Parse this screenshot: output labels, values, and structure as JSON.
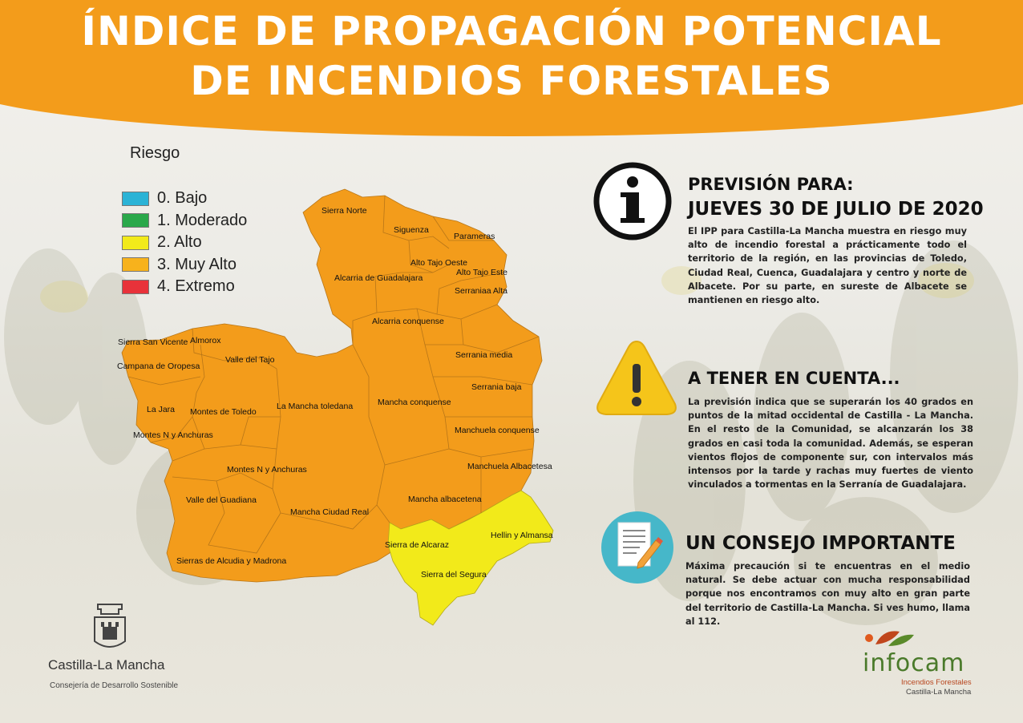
{
  "title": {
    "line1": "ÍNDICE DE PROPAGACIÓN POTENCIAL",
    "line2": "DE INCENDIOS FORESTALES"
  },
  "colors": {
    "banner": "#f39c1b",
    "muy_alto": "#f39c1b",
    "alto": "#f2ea1a"
  },
  "legend": {
    "title": "Riesgo",
    "items": [
      {
        "label": "0. Bajo",
        "color": "#2bb3d6"
      },
      {
        "label": "1. Moderado",
        "color": "#2aa84a"
      },
      {
        "label": "2. Alto",
        "color": "#f2ea1a"
      },
      {
        "label": "3. Muy Alto",
        "color": "#f7b21c"
      },
      {
        "label": "4. Extremo",
        "color": "#e8323a"
      }
    ]
  },
  "map": {
    "zones": [
      {
        "name": "Sierra Norte",
        "risk": "3. Muy Alto"
      },
      {
        "name": "Siguenza",
        "risk": "3. Muy Alto"
      },
      {
        "name": "Parameras",
        "risk": "3. Muy Alto"
      },
      {
        "name": "Alto Tajo Oeste",
        "risk": "3. Muy Alto"
      },
      {
        "name": "Alto Tajo Este",
        "risk": "3. Muy Alto"
      },
      {
        "name": "Alcarria de Guadalajara",
        "risk": "3. Muy Alto"
      },
      {
        "name": "Serraniaa Alta",
        "risk": "3. Muy Alto"
      },
      {
        "name": "Alcarria conquense",
        "risk": "3. Muy Alto"
      },
      {
        "name": "Sierra San Vicente",
        "risk": "3. Muy Alto"
      },
      {
        "name": "Almorox",
        "risk": "3. Muy Alto"
      },
      {
        "name": "Valle del Tajo",
        "risk": "3. Muy Alto"
      },
      {
        "name": "Serrania media",
        "risk": "3. Muy Alto"
      },
      {
        "name": "Campana de Oropesa",
        "risk": "3. Muy Alto"
      },
      {
        "name": "Serrania baja",
        "risk": "3. Muy Alto"
      },
      {
        "name": "Mancha conquense",
        "risk": "3. Muy Alto"
      },
      {
        "name": "La Mancha toledana",
        "risk": "3. Muy Alto"
      },
      {
        "name": "La Jara",
        "risk": "3. Muy Alto"
      },
      {
        "name": "Montes de Toledo",
        "risk": "3. Muy Alto"
      },
      {
        "name": "Manchuela conquense",
        "risk": "3. Muy Alto"
      },
      {
        "name": "Montes N y Anchuras",
        "risk": "3. Muy Alto"
      },
      {
        "name": "Manchuela Albacetesa",
        "risk": "3. Muy Alto"
      },
      {
        "name": "Montes N y Anchuras",
        "risk": "3. Muy Alto"
      },
      {
        "name": "Valle del Guadiana",
        "risk": "3. Muy Alto"
      },
      {
        "name": "Mancha albacetena",
        "risk": "3. Muy Alto"
      },
      {
        "name": "Mancha Ciudad Real",
        "risk": "3. Muy Alto"
      },
      {
        "name": "Hellin y Almansa",
        "risk": "2. Alto"
      },
      {
        "name": "Sierra de Alcaraz",
        "risk": "2. Alto"
      },
      {
        "name": "Sierras de Alcudia y Madrona",
        "risk": "3. Muy Alto"
      },
      {
        "name": "Sierra del Segura",
        "risk": "2. Alto"
      }
    ]
  },
  "prevision": {
    "heading1": "PREVISIÓN PARA:",
    "heading2": "JUEVES 30 DE JULIO DE 2020",
    "body": "El IPP para Castilla-La Mancha muestra en riesgo muy alto de incendio forestal a prácticamente todo el territorio de la región, en las provincias de Toledo, Ciudad Real, Cuenca, Guadalajara y centro y norte de Albacete. Por su parte, en sureste de Albacete se mantienen en riesgo alto.",
    "icon": "info-icon"
  },
  "tener_en_cuenta": {
    "heading": "A TENER EN CUENTA...",
    "body": "La previsión indica que se superarán los 40 grados en puntos de la mitad occidental de Castilla - La Mancha. En el resto de la Comunidad, se alcanzarán los 38 grados en casi toda la comunidad. Además, se esperan vientos flojos de componente sur, con intervalos más intensos por la tarde y rachas muy fuertes de viento vinculados a tormentas en la Serranía de Guadalajara.",
    "icon": "warning-icon"
  },
  "consejo": {
    "heading": "UN CONSEJO IMPORTANTE",
    "body": "Máxima precaución si te encuentras en el medio natural. Se debe actuar con mucha responsabilidad porque nos encontramos con muy alto en gran parte del territorio de Castilla-La Mancha. Si ves humo, llama al 112.",
    "icon": "document-pencil-icon"
  },
  "footer": {
    "clm_name": "Castilla-La Mancha",
    "clm_sub": "Consejería de Desarrollo Sostenible",
    "infocam_name": "infocam",
    "infocam_sub1": "Incendios Forestales",
    "infocam_sub2": "Castilla-La Mancha"
  }
}
